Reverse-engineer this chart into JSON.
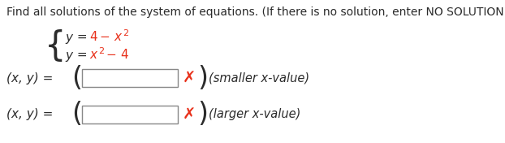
{
  "title": "Find all solutions of the system of equations. (If there is no solution, enter NO SOLUTION.)",
  "title_fontsize": 10.0,
  "title_color": "#2b2b2b",
  "eq_color_dark": "#2b2b2b",
  "eq_color_red": "#e8301a",
  "label_color": "#2b2b2b",
  "hint_color": "#2b2b2b",
  "box_color": "#ffffff",
  "box_edge_color": "#888888",
  "background_color": "#ffffff",
  "red_x_color": "#e8301a",
  "paren_color": "#2b2b2b",
  "hint1": "(smaller x-value)",
  "hint2": "(larger x-value)"
}
